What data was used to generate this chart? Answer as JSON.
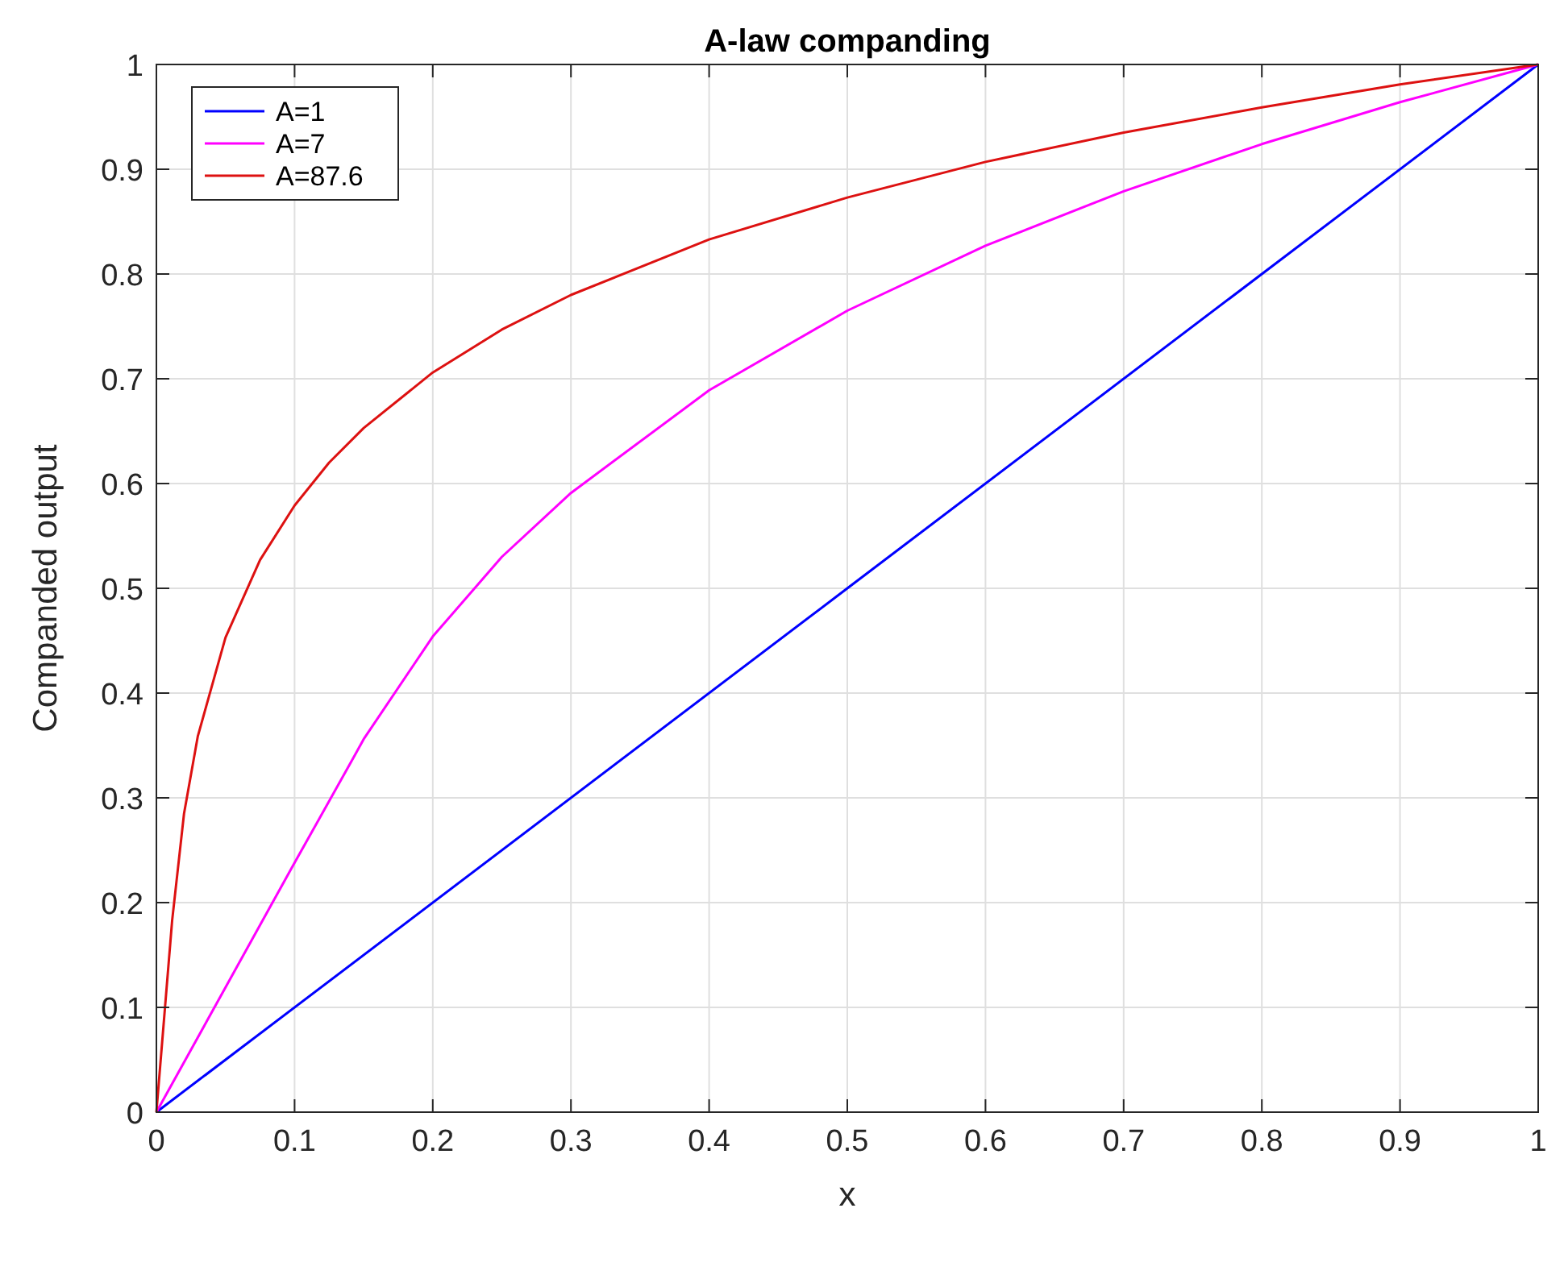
{
  "chart_data": {
    "type": "line",
    "title": "A-law companding",
    "xlabel": "x",
    "ylabel": "Companded output",
    "series": [
      {
        "name": "A=1",
        "color": "#0000ff",
        "x": [
          0,
          0.5,
          1
        ],
        "values": [
          0,
          0.5,
          1
        ]
      },
      {
        "name": "A=7",
        "color": "#ff00ff",
        "x": [
          0,
          0.05,
          0.1,
          0.1429,
          0.15,
          0.2,
          0.25,
          0.3,
          0.4,
          0.5,
          0.6,
          0.7,
          0.8,
          0.9,
          1
        ],
        "values": [
          0,
          0.119,
          0.238,
          0.339,
          0.356,
          0.454,
          0.53,
          0.591,
          0.689,
          0.765,
          0.827,
          0.879,
          0.924,
          0.964,
          1
        ]
      },
      {
        "name": "A=87.6",
        "color": "#dd1111",
        "x": [
          0,
          0.0114,
          0.02,
          0.03,
          0.05,
          0.075,
          0.1,
          0.125,
          0.15,
          0.2,
          0.25,
          0.3,
          0.4,
          0.5,
          0.6,
          0.7,
          0.8,
          0.9,
          1
        ],
        "values": [
          0,
          0.183,
          0.285,
          0.359,
          0.453,
          0.527,
          0.579,
          0.62,
          0.653,
          0.706,
          0.747,
          0.78,
          0.833,
          0.873,
          0.907,
          0.935,
          0.959,
          0.981,
          1
        ]
      }
    ],
    "xlim": [
      0,
      1
    ],
    "ylim": [
      0,
      1
    ],
    "xticks": [
      0,
      0.1,
      0.2,
      0.3,
      0.4,
      0.5,
      0.6,
      0.7,
      0.8,
      0.9,
      1
    ],
    "yticks": [
      0,
      0.1,
      0.2,
      0.3,
      0.4,
      0.5,
      0.6,
      0.7,
      0.8,
      0.9,
      1
    ],
    "grid": true,
    "legend": "top left"
  }
}
